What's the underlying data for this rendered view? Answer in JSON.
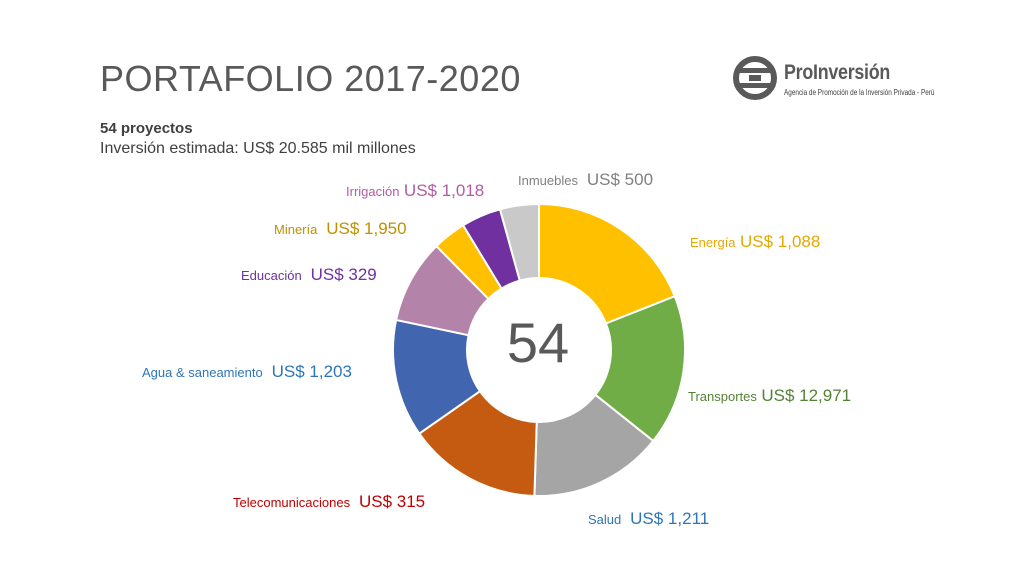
{
  "header": {
    "title": "PORTAFOLIO 2017-2020",
    "projects": "54 proyectos",
    "investment": "Inversión estimada: US$ 20.585 mil millones"
  },
  "logo": {
    "name": "ProInversión",
    "tagline": "Agencia de Promoción de la Inversión Privada - Perú"
  },
  "chart_data": {
    "type": "pie",
    "style": "donut",
    "center_label": "54",
    "slices": [
      {
        "name": "Energía",
        "value_label": "US$ 1,088",
        "share": 0.19,
        "color": "#FFC000"
      },
      {
        "name": "Transportes",
        "value_label": "US$ 12,971",
        "share": 0.167,
        "color": "#70AD47"
      },
      {
        "name": "Salud",
        "value_label": "US$ 1,211",
        "share": 0.148,
        "color": "#A5A5A5"
      },
      {
        "name": "Telecomunicaciones",
        "value_label": "US$ 315",
        "share": 0.148,
        "color": "#C55A11"
      },
      {
        "name": "Agua & saneamiento",
        "value_label": "US$ 1,203",
        "share": 0.13,
        "color": "#4165AF"
      },
      {
        "name": "Educación",
        "value_label": "US$ 329",
        "share": 0.093,
        "color": "#B383A9"
      },
      {
        "name": "Minería",
        "value_label": "US$ 1,950",
        "share": 0.037,
        "color": "#FFC000"
      },
      {
        "name": "Irrigación",
        "value_label": "US$ 1,018",
        "share": 0.044,
        "color": "#7030A0"
      },
      {
        "name": "Inmuebles",
        "value_label": "US$ 500",
        "share": 0.043,
        "color": "#C9C9C9"
      }
    ],
    "label_colors": {
      "Energía": "#E6A800",
      "Transportes": "#548235",
      "Salud": "#2E75B6",
      "Telecomunicaciones": "#C00000",
      "Agua & saneamiento": "#2E75B6",
      "Educación": "#7030A0",
      "Minería": "#BF9000",
      "Irrigación": "#B05DA0",
      "Inmuebles": "#808080"
    }
  }
}
